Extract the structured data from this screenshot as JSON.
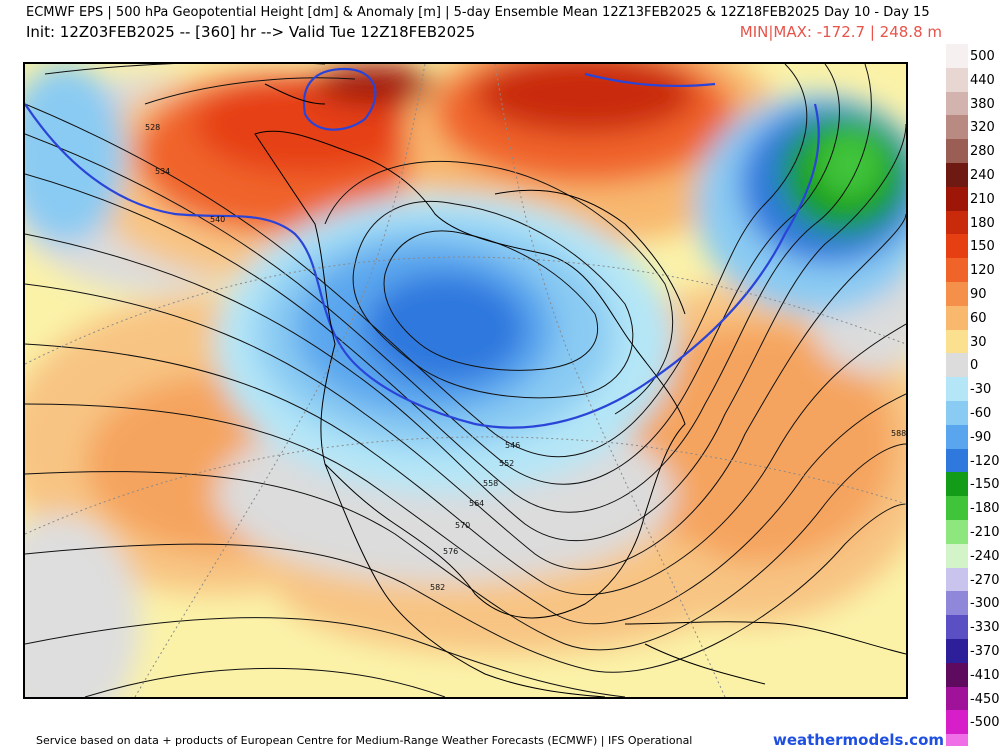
{
  "header": {
    "line1": "ECMWF EPS | 500 hPa Geopotential Height [dm] & Anomaly [m] | 5-day Ensemble Mean 12Z13FEB2025 & 12Z18FEB2025   Day 10 - Day 15",
    "line2": "Init: 12Z03FEB2025 -- [360] hr --> Valid Tue 12Z18FEB2025",
    "minmax": "MIN|MAX: -172.7 | 248.8 m"
  },
  "legend": {
    "stops": [
      {
        "label": "500",
        "color": "#f7f0f0"
      },
      {
        "label": "440",
        "color": "#e8d6d3"
      },
      {
        "label": "380",
        "color": "#d2b3ae"
      },
      {
        "label": "320",
        "color": "#b98a82"
      },
      {
        "label": "280",
        "color": "#9a5e55"
      },
      {
        "label": "240",
        "color": "#6e1a12"
      },
      {
        "label": "210",
        "color": "#9e1608"
      },
      {
        "label": "180",
        "color": "#c92a0c"
      },
      {
        "label": "150",
        "color": "#e63f12"
      },
      {
        "label": "120",
        "color": "#f0642a"
      },
      {
        "label": "90",
        "color": "#f5904a"
      },
      {
        "label": "60",
        "color": "#f8b86e"
      },
      {
        "label": "30",
        "color": "#fbe08f"
      },
      {
        "label": "0",
        "color": "#dcdcdc"
      },
      {
        "label": "-30",
        "color": "#b4e6f7"
      },
      {
        "label": "-60",
        "color": "#8acbf3"
      },
      {
        "label": "-90",
        "color": "#5aa6ee"
      },
      {
        "label": "-120",
        "color": "#2f78de"
      },
      {
        "label": "-150",
        "color": "#139c18"
      },
      {
        "label": "-180",
        "color": "#3fc43a"
      },
      {
        "label": "-210",
        "color": "#8ee67f"
      },
      {
        "label": "-240",
        "color": "#d3f3c9"
      },
      {
        "label": "-270",
        "color": "#c9c4ee"
      },
      {
        "label": "-300",
        "color": "#8f87da"
      },
      {
        "label": "-330",
        "color": "#5a50c4"
      },
      {
        "label": "-370",
        "color": "#2d1f9a"
      },
      {
        "label": "-410",
        "color": "#5e0a5e"
      },
      {
        "label": "-450",
        "color": "#a0129a"
      },
      {
        "label": "-500",
        "color": "#d61fc9"
      }
    ],
    "end_color": "#ee6fe6"
  },
  "contours": {
    "labels": [
      "528",
      "534",
      "540",
      "546",
      "552",
      "558",
      "564",
      "570",
      "576",
      "582",
      "588"
    ]
  },
  "footer": {
    "credit": "Service based on data + products of European Centre for Medium-Range Weather Forecasts (ECMWF) | IFS Operational",
    "brand": "weathermodels.com"
  }
}
